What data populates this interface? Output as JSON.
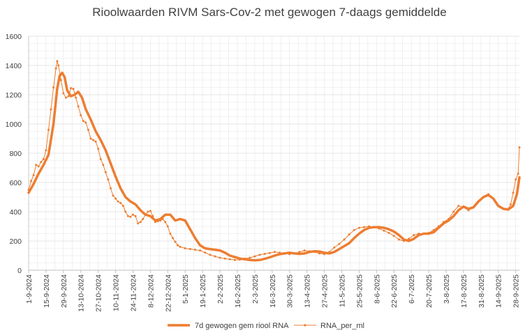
{
  "chart_data": {
    "type": "line",
    "title": "Rioolwaarden RIVM Sars-Cov-2 met gewogen 7-daags gemiddelde",
    "xlabel": "",
    "ylabel": "",
    "ylim": [
      0,
      1600
    ],
    "y_ticks": [
      0,
      200,
      400,
      600,
      800,
      1000,
      1200,
      1400,
      1600
    ],
    "x_ticks": [
      "1-9-2024",
      "15-9-2024",
      "29-9-2024",
      "13-10-2024",
      "27-10-2024",
      "10-11-2024",
      "24-11-2024",
      "8-12-2024",
      "22-12-2024",
      "5-1-2025",
      "19-1-2025",
      "2-2-2025",
      "16-2-2025",
      "2-3-2025",
      "16-3-2025",
      "30-3-2025",
      "13-4-2025",
      "27-4-2025",
      "11-5-2025",
      "25-5-2025",
      "8-6-2025",
      "22-6-2025",
      "6-7-2025",
      "20-7-2025",
      "3-8-2025",
      "17-8-2025",
      "31-8-2025",
      "14-9-2025",
      "28-9-2025"
    ],
    "x_range": [
      "2024-09-01",
      "2025-10-01"
    ],
    "grid": true,
    "legend_position": "bottom",
    "colors": {
      "series1": "#ed7d31",
      "series2": "#ed7d31",
      "grid": "#e6e6e6",
      "axis": "#bfbfbf"
    },
    "series": [
      {
        "name": "7d gewogen gem riool RNA",
        "style": "thick-line",
        "points": [
          [
            "2024-09-01",
            530
          ],
          [
            "2024-09-05",
            590
          ],
          [
            "2024-09-09",
            660
          ],
          [
            "2024-09-13",
            720
          ],
          [
            "2024-09-17",
            790
          ],
          [
            "2024-09-21",
            1000
          ],
          [
            "2024-09-24",
            1240
          ],
          [
            "2024-09-26",
            1330
          ],
          [
            "2024-09-28",
            1350
          ],
          [
            "2024-09-30",
            1320
          ],
          [
            "2024-10-02",
            1230
          ],
          [
            "2024-10-05",
            1190
          ],
          [
            "2024-10-08",
            1200
          ],
          [
            "2024-10-11",
            1220
          ],
          [
            "2024-10-14",
            1180
          ],
          [
            "2024-10-17",
            1100
          ],
          [
            "2024-10-21",
            1030
          ],
          [
            "2024-10-25",
            950
          ],
          [
            "2024-10-29",
            890
          ],
          [
            "2024-11-02",
            820
          ],
          [
            "2024-11-06",
            730
          ],
          [
            "2024-11-10",
            640
          ],
          [
            "2024-11-14",
            560
          ],
          [
            "2024-11-18",
            500
          ],
          [
            "2024-11-22",
            470
          ],
          [
            "2024-11-26",
            450
          ],
          [
            "2024-11-30",
            410
          ],
          [
            "2024-12-04",
            380
          ],
          [
            "2024-12-08",
            370
          ],
          [
            "2024-12-12",
            340
          ],
          [
            "2024-12-16",
            350
          ],
          [
            "2024-12-20",
            380
          ],
          [
            "2024-12-24",
            380
          ],
          [
            "2024-12-28",
            340
          ],
          [
            "2025-01-01",
            350
          ],
          [
            "2025-01-05",
            340
          ],
          [
            "2025-01-09",
            280
          ],
          [
            "2025-01-13",
            220
          ],
          [
            "2025-01-17",
            170
          ],
          [
            "2025-01-21",
            150
          ],
          [
            "2025-01-25",
            145
          ],
          [
            "2025-01-29",
            140
          ],
          [
            "2025-02-02",
            135
          ],
          [
            "2025-02-06",
            120
          ],
          [
            "2025-02-10",
            100
          ],
          [
            "2025-02-14",
            90
          ],
          [
            "2025-02-18",
            80
          ],
          [
            "2025-02-22",
            75
          ],
          [
            "2025-02-26",
            70
          ],
          [
            "2025-03-02",
            68
          ],
          [
            "2025-03-06",
            70
          ],
          [
            "2025-03-10",
            78
          ],
          [
            "2025-03-14",
            88
          ],
          [
            "2025-03-18",
            100
          ],
          [
            "2025-03-22",
            110
          ],
          [
            "2025-03-26",
            115
          ],
          [
            "2025-03-30",
            120
          ],
          [
            "2025-04-03",
            115
          ],
          [
            "2025-04-07",
            112
          ],
          [
            "2025-04-11",
            115
          ],
          [
            "2025-04-15",
            125
          ],
          [
            "2025-04-19",
            130
          ],
          [
            "2025-04-23",
            128
          ],
          [
            "2025-04-27",
            120
          ],
          [
            "2025-05-01",
            115
          ],
          [
            "2025-05-05",
            125
          ],
          [
            "2025-05-09",
            145
          ],
          [
            "2025-05-13",
            165
          ],
          [
            "2025-05-17",
            185
          ],
          [
            "2025-05-21",
            220
          ],
          [
            "2025-05-25",
            250
          ],
          [
            "2025-05-29",
            275
          ],
          [
            "2025-06-02",
            290
          ],
          [
            "2025-06-06",
            295
          ],
          [
            "2025-06-10",
            295
          ],
          [
            "2025-06-14",
            290
          ],
          [
            "2025-06-18",
            280
          ],
          [
            "2025-06-22",
            265
          ],
          [
            "2025-06-26",
            240
          ],
          [
            "2025-06-30",
            210
          ],
          [
            "2025-07-04",
            200
          ],
          [
            "2025-07-08",
            215
          ],
          [
            "2025-07-12",
            240
          ],
          [
            "2025-07-16",
            250
          ],
          [
            "2025-07-20",
            250
          ],
          [
            "2025-07-24",
            260
          ],
          [
            "2025-07-28",
            290
          ],
          [
            "2025-08-01",
            320
          ],
          [
            "2025-08-05",
            340
          ],
          [
            "2025-08-09",
            370
          ],
          [
            "2025-08-13",
            410
          ],
          [
            "2025-08-17",
            435
          ],
          [
            "2025-08-21",
            420
          ],
          [
            "2025-08-25",
            430
          ],
          [
            "2025-08-29",
            470
          ],
          [
            "2025-09-02",
            500
          ],
          [
            "2025-09-06",
            515
          ],
          [
            "2025-09-10",
            490
          ],
          [
            "2025-09-14",
            440
          ],
          [
            "2025-09-18",
            420
          ],
          [
            "2025-09-22",
            415
          ],
          [
            "2025-09-26",
            440
          ],
          [
            "2025-09-29",
            520
          ],
          [
            "2025-10-01",
            635
          ]
        ]
      },
      {
        "name": "RNA_per_ml",
        "style": "thin-line-markers",
        "points": [
          [
            "2024-09-01",
            550
          ],
          [
            "2024-09-03",
            610
          ],
          [
            "2024-09-05",
            650
          ],
          [
            "2024-09-07",
            720
          ],
          [
            "2024-09-09",
            710
          ],
          [
            "2024-09-11",
            740
          ],
          [
            "2024-09-13",
            760
          ],
          [
            "2024-09-15",
            820
          ],
          [
            "2024-09-17",
            960
          ],
          [
            "2024-09-19",
            1100
          ],
          [
            "2024-09-21",
            1250
          ],
          [
            "2024-09-23",
            1380
          ],
          [
            "2024-09-24",
            1430
          ],
          [
            "2024-09-25",
            1400
          ],
          [
            "2024-09-27",
            1300
          ],
          [
            "2024-09-29",
            1210
          ],
          [
            "2024-10-01",
            1180
          ],
          [
            "2024-10-03",
            1190
          ],
          [
            "2024-10-05",
            1245
          ],
          [
            "2024-10-07",
            1240
          ],
          [
            "2024-10-09",
            1180
          ],
          [
            "2024-10-11",
            1120
          ],
          [
            "2024-10-13",
            1060
          ],
          [
            "2024-10-15",
            1020
          ],
          [
            "2024-10-17",
            1010
          ],
          [
            "2024-10-19",
            960
          ],
          [
            "2024-10-21",
            900
          ],
          [
            "2024-10-23",
            890
          ],
          [
            "2024-10-25",
            880
          ],
          [
            "2024-10-27",
            830
          ],
          [
            "2024-10-29",
            760
          ],
          [
            "2024-10-31",
            720
          ],
          [
            "2024-11-02",
            670
          ],
          [
            "2024-11-04",
            620
          ],
          [
            "2024-11-06",
            560
          ],
          [
            "2024-11-08",
            510
          ],
          [
            "2024-11-10",
            490
          ],
          [
            "2024-11-12",
            470
          ],
          [
            "2024-11-14",
            460
          ],
          [
            "2024-11-16",
            440
          ],
          [
            "2024-11-18",
            400
          ],
          [
            "2024-11-20",
            370
          ],
          [
            "2024-11-22",
            365
          ],
          [
            "2024-11-24",
            380
          ],
          [
            "2024-11-26",
            370
          ],
          [
            "2024-11-28",
            320
          ],
          [
            "2024-11-30",
            330
          ],
          [
            "2024-12-02",
            350
          ],
          [
            "2024-12-04",
            380
          ],
          [
            "2024-12-06",
            400
          ],
          [
            "2024-12-08",
            405
          ],
          [
            "2024-12-10",
            370
          ],
          [
            "2024-12-12",
            330
          ],
          [
            "2024-12-14",
            335
          ],
          [
            "2024-12-16",
            340
          ],
          [
            "2024-12-18",
            350
          ],
          [
            "2024-12-20",
            330
          ],
          [
            "2024-12-22",
            300
          ],
          [
            "2024-12-24",
            250
          ],
          [
            "2024-12-26",
            220
          ],
          [
            "2024-12-28",
            195
          ],
          [
            "2024-12-30",
            170
          ],
          [
            "2025-01-01",
            160
          ],
          [
            "2025-01-05",
            150
          ],
          [
            "2025-01-09",
            145
          ],
          [
            "2025-01-13",
            140
          ],
          [
            "2025-01-17",
            135
          ],
          [
            "2025-01-21",
            120
          ],
          [
            "2025-01-25",
            105
          ],
          [
            "2025-01-29",
            95
          ],
          [
            "2025-02-02",
            85
          ],
          [
            "2025-02-06",
            80
          ],
          [
            "2025-02-10",
            75
          ],
          [
            "2025-02-14",
            70
          ],
          [
            "2025-02-18",
            72
          ],
          [
            "2025-02-22",
            80
          ],
          [
            "2025-02-26",
            85
          ],
          [
            "2025-03-02",
            95
          ],
          [
            "2025-03-06",
            105
          ],
          [
            "2025-03-10",
            112
          ],
          [
            "2025-03-14",
            118
          ],
          [
            "2025-03-18",
            125
          ],
          [
            "2025-03-22",
            120
          ],
          [
            "2025-03-26",
            115
          ],
          [
            "2025-03-30",
            110
          ],
          [
            "2025-04-03",
            115
          ],
          [
            "2025-04-07",
            125
          ],
          [
            "2025-04-11",
            135
          ],
          [
            "2025-04-15",
            130
          ],
          [
            "2025-04-19",
            125
          ],
          [
            "2025-04-23",
            115
          ],
          [
            "2025-04-27",
            110
          ],
          [
            "2025-05-01",
            125
          ],
          [
            "2025-05-05",
            155
          ],
          [
            "2025-05-09",
            180
          ],
          [
            "2025-05-13",
            210
          ],
          [
            "2025-05-17",
            245
          ],
          [
            "2025-05-21",
            275
          ],
          [
            "2025-05-25",
            290
          ],
          [
            "2025-05-29",
            295
          ],
          [
            "2025-06-02",
            300
          ],
          [
            "2025-06-06",
            295
          ],
          [
            "2025-06-10",
            285
          ],
          [
            "2025-06-14",
            270
          ],
          [
            "2025-06-18",
            255
          ],
          [
            "2025-06-22",
            235
          ],
          [
            "2025-06-26",
            210
          ],
          [
            "2025-06-30",
            200
          ],
          [
            "2025-07-04",
            215
          ],
          [
            "2025-07-08",
            240
          ],
          [
            "2025-07-12",
            250
          ],
          [
            "2025-07-16",
            250
          ],
          [
            "2025-07-20",
            255
          ],
          [
            "2025-07-24",
            275
          ],
          [
            "2025-07-28",
            300
          ],
          [
            "2025-08-01",
            330
          ],
          [
            "2025-08-05",
            350
          ],
          [
            "2025-08-09",
            400
          ],
          [
            "2025-08-13",
            440
          ],
          [
            "2025-08-17",
            430
          ],
          [
            "2025-08-21",
            410
          ],
          [
            "2025-08-25",
            430
          ],
          [
            "2025-08-29",
            470
          ],
          [
            "2025-09-02",
            500
          ],
          [
            "2025-09-06",
            520
          ],
          [
            "2025-09-10",
            490
          ],
          [
            "2025-09-14",
            440
          ],
          [
            "2025-09-18",
            420
          ],
          [
            "2025-09-22",
            420
          ],
          [
            "2025-09-24",
            450
          ],
          [
            "2025-09-26",
            530
          ],
          [
            "2025-09-28",
            620
          ],
          [
            "2025-09-30",
            660
          ],
          [
            "2025-10-01",
            840
          ]
        ]
      }
    ]
  }
}
